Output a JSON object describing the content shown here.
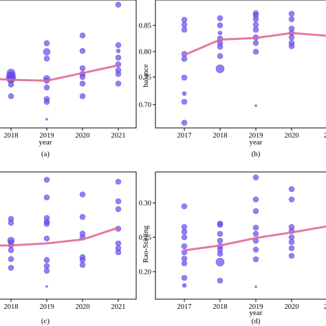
{
  "chart_data": [
    {
      "panel": "(a)",
      "type": "scatter",
      "xlabel": "year",
      "ylabel": "",
      "x_ticks": [
        "2018",
        "2019",
        "2020",
        "2021"
      ],
      "y_ticks": [],
      "trend": [
        {
          "x": 2017,
          "y": 0.52
        },
        {
          "x": 2018,
          "y": 0.5
        },
        {
          "x": 2019,
          "y": 0.49
        },
        {
          "x": 2020,
          "y": 0.57
        },
        {
          "x": 2021,
          "y": 0.65
        }
      ],
      "points": [
        {
          "x": 2018,
          "y": 0.57,
          "s": 6
        },
        {
          "x": 2018,
          "y": 0.55,
          "s": 5
        },
        {
          "x": 2018,
          "y": 0.53,
          "s": 7
        },
        {
          "x": 2018,
          "y": 0.51,
          "s": 6
        },
        {
          "x": 2018,
          "y": 0.5,
          "s": 5
        },
        {
          "x": 2018,
          "y": 0.45,
          "s": 4
        },
        {
          "x": 2018,
          "y": 0.33,
          "s": 4
        },
        {
          "x": 2019,
          "y": 0.88,
          "s": 4
        },
        {
          "x": 2019,
          "y": 0.79,
          "s": 5
        },
        {
          "x": 2019,
          "y": 0.72,
          "s": 4
        },
        {
          "x": 2019,
          "y": 0.51,
          "s": 5
        },
        {
          "x": 2019,
          "y": 0.49,
          "s": 4
        },
        {
          "x": 2019,
          "y": 0.42,
          "s": 4
        },
        {
          "x": 2019,
          "y": 0.3,
          "s": 4
        },
        {
          "x": 2019,
          "y": 0.27,
          "s": 4
        },
        {
          "x": 2019,
          "y": 0.09,
          "s": 1.5
        },
        {
          "x": 2020,
          "y": 0.96,
          "s": 4
        },
        {
          "x": 2020,
          "y": 0.8,
          "s": 4
        },
        {
          "x": 2020,
          "y": 0.62,
          "s": 4
        },
        {
          "x": 2020,
          "y": 0.56,
          "s": 4
        },
        {
          "x": 2020,
          "y": 0.53,
          "s": 4
        },
        {
          "x": 2020,
          "y": 0.46,
          "s": 4
        },
        {
          "x": 2020,
          "y": 0.33,
          "s": 4
        },
        {
          "x": 2021,
          "y": 1.28,
          "s": 4
        },
        {
          "x": 2021,
          "y": 0.86,
          "s": 4
        },
        {
          "x": 2021,
          "y": 0.8,
          "s": 3
        },
        {
          "x": 2021,
          "y": 0.73,
          "s": 4
        },
        {
          "x": 2021,
          "y": 0.66,
          "s": 4
        },
        {
          "x": 2021,
          "y": 0.6,
          "s": 4
        },
        {
          "x": 2021,
          "y": 0.56,
          "s": 4
        },
        {
          "x": 2021,
          "y": 0.46,
          "s": 4
        }
      ]
    },
    {
      "panel": "(b)",
      "type": "scatter",
      "xlabel": "year",
      "ylabel": "balance",
      "x_ticks": [
        "2017",
        "2018",
        "2019",
        "2020",
        "20"
      ],
      "y_ticks": [
        "0.70",
        "0.75",
        "0.80",
        "0.85"
      ],
      "ylim": [
        0.66,
        0.87
      ],
      "trend": [
        {
          "x": 2017,
          "y": 0.79
        },
        {
          "x": 2018,
          "y": 0.818
        },
        {
          "x": 2019,
          "y": 0.821
        },
        {
          "x": 2020,
          "y": 0.83
        },
        {
          "x": 2021,
          "y": 0.825
        }
      ],
      "points": [
        {
          "x": 2017,
          "y": 0.854,
          "s": 4
        },
        {
          "x": 2017,
          "y": 0.845,
          "s": 4
        },
        {
          "x": 2017,
          "y": 0.836,
          "s": 4
        },
        {
          "x": 2017,
          "y": 0.792,
          "s": 4
        },
        {
          "x": 2017,
          "y": 0.783,
          "s": 4
        },
        {
          "x": 2017,
          "y": 0.749,
          "s": 4
        },
        {
          "x": 2017,
          "y": 0.72,
          "s": 3
        },
        {
          "x": 2017,
          "y": 0.705,
          "s": 4
        },
        {
          "x": 2017,
          "y": 0.667,
          "s": 4
        },
        {
          "x": 2018,
          "y": 0.857,
          "s": 4
        },
        {
          "x": 2018,
          "y": 0.844,
          "s": 4
        },
        {
          "x": 2018,
          "y": 0.83,
          "s": 3
        },
        {
          "x": 2018,
          "y": 0.82,
          "s": 4
        },
        {
          "x": 2018,
          "y": 0.812,
          "s": 4
        },
        {
          "x": 2018,
          "y": 0.805,
          "s": 4
        },
        {
          "x": 2018,
          "y": 0.788,
          "s": 4
        },
        {
          "x": 2018,
          "y": 0.765,
          "s": 6
        },
        {
          "x": 2019,
          "y": 0.866,
          "s": 4
        },
        {
          "x": 2019,
          "y": 0.862,
          "s": 4
        },
        {
          "x": 2019,
          "y": 0.855,
          "s": 4
        },
        {
          "x": 2019,
          "y": 0.845,
          "s": 4
        },
        {
          "x": 2019,
          "y": 0.836,
          "s": 4
        },
        {
          "x": 2019,
          "y": 0.822,
          "s": 4
        },
        {
          "x": 2019,
          "y": 0.812,
          "s": 4
        },
        {
          "x": 2019,
          "y": 0.796,
          "s": 4
        },
        {
          "x": 2019,
          "y": 0.698,
          "s": 1.5
        },
        {
          "x": 2020,
          "y": 0.865,
          "s": 4
        },
        {
          "x": 2020,
          "y": 0.855,
          "s": 4
        },
        {
          "x": 2020,
          "y": 0.838,
          "s": 4
        },
        {
          "x": 2020,
          "y": 0.83,
          "s": 4
        },
        {
          "x": 2020,
          "y": 0.822,
          "s": 4
        },
        {
          "x": 2020,
          "y": 0.812,
          "s": 4
        },
        {
          "x": 2020,
          "y": 0.806,
          "s": 4
        }
      ]
    },
    {
      "panel": "(c)",
      "type": "scatter",
      "xlabel": "",
      "ylabel": "",
      "x_ticks": [
        "2018",
        "2019",
        "2020",
        "2021"
      ],
      "y_ticks": [],
      "trend": [
        {
          "x": 2017,
          "y": 0.54
        },
        {
          "x": 2018,
          "y": 0.55
        },
        {
          "x": 2019,
          "y": 0.57
        },
        {
          "x": 2020,
          "y": 0.61
        },
        {
          "x": 2021,
          "y": 0.73
        }
      ],
      "points": [
        {
          "x": 2018,
          "y": 0.82,
          "s": 4
        },
        {
          "x": 2018,
          "y": 0.78,
          "s": 4
        },
        {
          "x": 2018,
          "y": 0.6,
          "s": 5
        },
        {
          "x": 2018,
          "y": 0.58,
          "s": 4
        },
        {
          "x": 2018,
          "y": 0.55,
          "s": 4
        },
        {
          "x": 2018,
          "y": 0.5,
          "s": 4
        },
        {
          "x": 2018,
          "y": 0.41,
          "s": 4
        },
        {
          "x": 2018,
          "y": 0.32,
          "s": 4
        },
        {
          "x": 2019,
          "y": 1.22,
          "s": 4
        },
        {
          "x": 2019,
          "y": 1.04,
          "s": 4
        },
        {
          "x": 2019,
          "y": 0.83,
          "s": 4
        },
        {
          "x": 2019,
          "y": 0.79,
          "s": 4
        },
        {
          "x": 2019,
          "y": 0.77,
          "s": 4
        },
        {
          "x": 2019,
          "y": 0.62,
          "s": 4
        },
        {
          "x": 2019,
          "y": 0.4,
          "s": 4
        },
        {
          "x": 2019,
          "y": 0.34,
          "s": 4
        },
        {
          "x": 2019,
          "y": 0.29,
          "s": 4
        },
        {
          "x": 2019,
          "y": 0.13,
          "s": 1.5
        },
        {
          "x": 2020,
          "y": 1.07,
          "s": 4
        },
        {
          "x": 2020,
          "y": 0.84,
          "s": 4
        },
        {
          "x": 2020,
          "y": 0.67,
          "s": 4
        },
        {
          "x": 2020,
          "y": 0.63,
          "s": 4
        },
        {
          "x": 2020,
          "y": 0.43,
          "s": 4
        },
        {
          "x": 2020,
          "y": 0.4,
          "s": 4
        },
        {
          "x": 2020,
          "y": 0.35,
          "s": 4
        },
        {
          "x": 2021,
          "y": 1.2,
          "s": 4
        },
        {
          "x": 2021,
          "y": 1.0,
          "s": 4
        },
        {
          "x": 2021,
          "y": 0.92,
          "s": 4
        },
        {
          "x": 2021,
          "y": 0.72,
          "s": 4
        },
        {
          "x": 2021,
          "y": 0.57,
          "s": 4
        },
        {
          "x": 2021,
          "y": 0.52,
          "s": 4
        },
        {
          "x": 2021,
          "y": 0.48,
          "s": 4
        }
      ]
    },
    {
      "panel": "(d)",
      "type": "scatter",
      "xlabel": "year",
      "ylabel": "Rao-Stirling",
      "x_ticks": [
        "2017",
        "2018",
        "2019",
        "2020",
        "20"
      ],
      "y_ticks": [
        "0.20",
        "0.25",
        "0.30"
      ],
      "ylim": [
        0.172,
        0.345
      ],
      "trend": [
        {
          "x": 2017,
          "y": 0.231
        },
        {
          "x": 2018,
          "y": 0.238
        },
        {
          "x": 2019,
          "y": 0.249
        },
        {
          "x": 2020,
          "y": 0.257
        },
        {
          "x": 2021,
          "y": 0.266
        }
      ],
      "points": [
        {
          "x": 2017,
          "y": 0.295,
          "s": 4
        },
        {
          "x": 2017,
          "y": 0.265,
          "s": 4
        },
        {
          "x": 2017,
          "y": 0.258,
          "s": 4
        },
        {
          "x": 2017,
          "y": 0.25,
          "s": 4
        },
        {
          "x": 2017,
          "y": 0.237,
          "s": 4
        },
        {
          "x": 2017,
          "y": 0.228,
          "s": 4
        },
        {
          "x": 2017,
          "y": 0.219,
          "s": 4
        },
        {
          "x": 2017,
          "y": 0.212,
          "s": 4
        },
        {
          "x": 2017,
          "y": 0.191,
          "s": 4
        },
        {
          "x": 2017,
          "y": 0.18,
          "s": 3
        },
        {
          "x": 2018,
          "y": 0.27,
          "s": 4
        },
        {
          "x": 2018,
          "y": 0.268,
          "s": 4
        },
        {
          "x": 2018,
          "y": 0.255,
          "s": 4
        },
        {
          "x": 2018,
          "y": 0.245,
          "s": 4
        },
        {
          "x": 2018,
          "y": 0.237,
          "s": 4
        },
        {
          "x": 2018,
          "y": 0.232,
          "s": 4
        },
        {
          "x": 2018,
          "y": 0.226,
          "s": 4
        },
        {
          "x": 2018,
          "y": 0.214,
          "s": 6
        },
        {
          "x": 2018,
          "y": 0.187,
          "s": 4
        },
        {
          "x": 2019,
          "y": 0.337,
          "s": 4
        },
        {
          "x": 2019,
          "y": 0.305,
          "s": 4
        },
        {
          "x": 2019,
          "y": 0.288,
          "s": 4
        },
        {
          "x": 2019,
          "y": 0.264,
          "s": 4
        },
        {
          "x": 2019,
          "y": 0.255,
          "s": 4
        },
        {
          "x": 2019,
          "y": 0.245,
          "s": 4
        },
        {
          "x": 2019,
          "y": 0.232,
          "s": 4
        },
        {
          "x": 2019,
          "y": 0.218,
          "s": 4
        },
        {
          "x": 2019,
          "y": 0.178,
          "s": 1.5
        },
        {
          "x": 2020,
          "y": 0.32,
          "s": 4
        },
        {
          "x": 2020,
          "y": 0.305,
          "s": 4
        },
        {
          "x": 2020,
          "y": 0.265,
          "s": 4
        },
        {
          "x": 2020,
          "y": 0.259,
          "s": 4
        },
        {
          "x": 2020,
          "y": 0.25,
          "s": 4
        },
        {
          "x": 2020,
          "y": 0.243,
          "s": 4
        },
        {
          "x": 2020,
          "y": 0.234,
          "s": 4
        },
        {
          "x": 2020,
          "y": 0.223,
          "s": 4
        }
      ]
    }
  ],
  "colors": {
    "point": "#6a4ef0",
    "point_stroke": "#4b3bc2",
    "trend": "#e06a96",
    "highlight": "#c46fd0"
  }
}
